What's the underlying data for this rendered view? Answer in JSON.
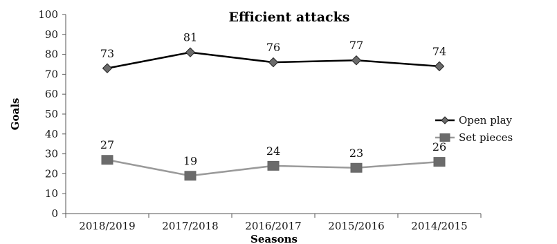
{
  "chart_data": {
    "type": "line",
    "title": "Efficient attacks",
    "xlabel": "Seasons",
    "ylabel": "Goals",
    "categories": [
      "2018/2019",
      "2017/2018",
      "2016/2017",
      "2015/2016",
      "2014/2015"
    ],
    "ylim": [
      0,
      100
    ],
    "yticks": [
      0,
      10,
      20,
      30,
      40,
      50,
      60,
      70,
      80,
      90,
      100
    ],
    "grid": false,
    "legend_position": "right",
    "series": [
      {
        "name": "Open play",
        "values": [
          73,
          81,
          76,
          77,
          74
        ],
        "labels": [
          "73",
          "81",
          "76",
          "77",
          "74"
        ],
        "color": "#000000",
        "marker": "diamond",
        "marker_color": "#6b6b6b"
      },
      {
        "name": "Set pieces",
        "values": [
          27,
          19,
          24,
          23,
          26
        ],
        "labels": [
          "27",
          "19",
          "24",
          "23",
          "26"
        ],
        "color": "#9a9a9a",
        "marker": "square",
        "marker_color": "#6b6b6b"
      }
    ]
  }
}
